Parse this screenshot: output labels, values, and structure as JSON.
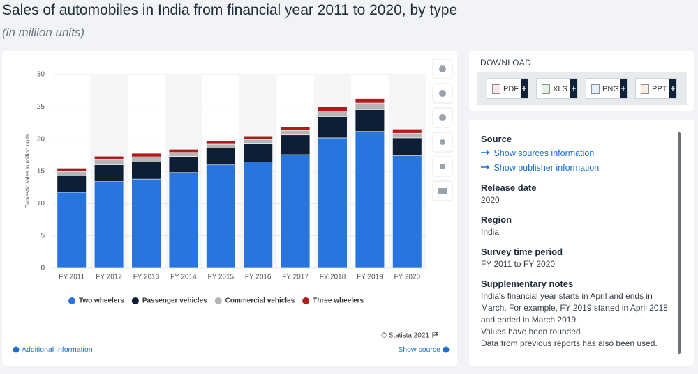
{
  "chart_data": {
    "type": "bar",
    "stacked": true,
    "title": "Sales of automobiles in India from financial year 2011 to 2020, by type",
    "subtitle": "(in million units)",
    "ylabel": "Domestic sales in million units",
    "categories": [
      "FY 2011",
      "FY 2012",
      "FY 2013",
      "FY 2014",
      "FY 2015",
      "FY 2016",
      "FY 2017",
      "FY 2018",
      "FY 2019",
      "FY 2020"
    ],
    "series": [
      {
        "name": "Two wheelers",
        "color": "#2876dd",
        "values": [
          11.77,
          13.41,
          13.8,
          14.81,
          16.0,
          16.46,
          17.59,
          20.19,
          21.18,
          17.42
        ]
      },
      {
        "name": "Passenger vehicles",
        "color": "#0e1e35",
        "values": [
          2.52,
          2.62,
          2.67,
          2.5,
          2.6,
          2.79,
          3.05,
          3.29,
          3.38,
          2.77
        ]
      },
      {
        "name": "Commercial vehicles",
        "color": "#b5b5b5",
        "values": [
          0.68,
          0.81,
          0.79,
          0.63,
          0.61,
          0.69,
          0.71,
          0.86,
          1.01,
          0.72
        ]
      },
      {
        "name": "Three wheelers",
        "color": "#b01c1c",
        "values": [
          0.53,
          0.51,
          0.54,
          0.48,
          0.53,
          0.54,
          0.51,
          0.64,
          0.7,
          0.64
        ]
      }
    ],
    "ylim": [
      0,
      30
    ],
    "yticks": [
      0,
      5,
      10,
      15,
      20,
      25,
      30
    ],
    "grid": true,
    "legend": "bottom",
    "credit": "© Statista 2021"
  },
  "footer": {
    "additional": "Additional Information",
    "source": "Show source"
  },
  "download": {
    "title": "DOWNLOAD",
    "buttons": [
      "PDF",
      "XLS",
      "PNG",
      "PPT"
    ]
  },
  "info": {
    "source_title": "Source",
    "source_links": [
      "Show sources information",
      "Show publisher information"
    ],
    "release_title": "Release date",
    "release": "2020",
    "region_title": "Region",
    "region": "India",
    "period_title": "Survey time period",
    "period": "FY 2011 to FY 2020",
    "notes_title": "Supplementary notes",
    "notes": [
      "India's financial year starts in April and ends in March. For example, FY 2019 started in April 2018 and ended in March 2019.",
      "Values have been rounded.",
      "Data from previous reports has also been used."
    ]
  }
}
